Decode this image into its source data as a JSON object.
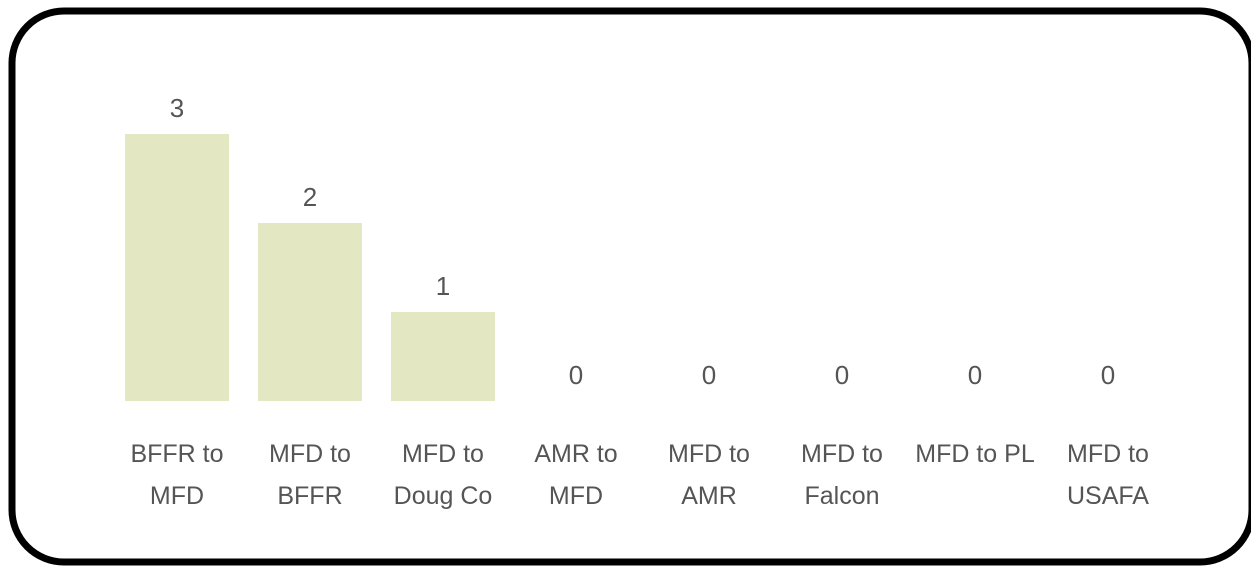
{
  "chart_data": {
    "type": "bar",
    "categories": [
      "BFFR to MFD",
      "MFD to BFFR",
      "MFD to Doug Co",
      "AMR to MFD",
      "MFD to AMR",
      "MFD to Falcon",
      "MFD to PL",
      "MFD to USAFA"
    ],
    "values": [
      3,
      2,
      1,
      0,
      0,
      0,
      0,
      0
    ],
    "color": "#e3e8c3"
  }
}
